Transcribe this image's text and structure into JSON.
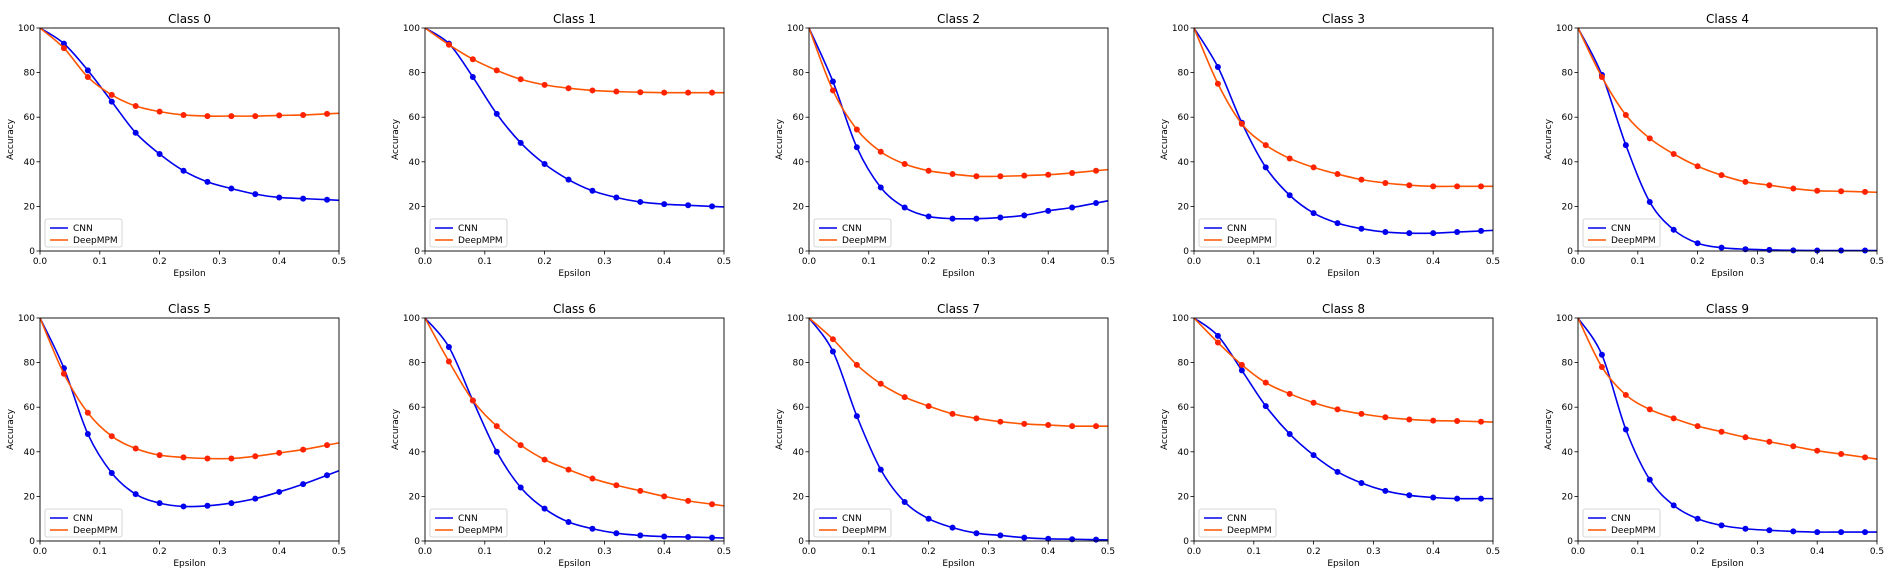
{
  "figure": {
    "colors": {
      "CNN": "#0000ee",
      "DeepMPM": "#ff2200",
      "DeepMPM_line": "#ff5500"
    }
  },
  "chart_data": [
    {
      "type": "line",
      "title": "Class 0",
      "xlabel": "Epsilon",
      "ylabel": "Accuracy",
      "xlim": [
        0,
        0.5
      ],
      "ylim": [
        0,
        100
      ],
      "xticks": [
        "0.0",
        "0.1",
        "0.2",
        "0.3",
        "0.4",
        "0.5"
      ],
      "yticks": [
        "0",
        "20",
        "40",
        "60",
        "80",
        "100"
      ],
      "x": [
        0,
        0.04,
        0.08,
        0.12,
        0.16,
        0.2,
        0.24,
        0.28,
        0.32,
        0.36,
        0.4,
        0.44,
        0.48
      ],
      "legend": "lower-left",
      "series": [
        {
          "name": "CNN",
          "values": [
            100,
            93,
            81,
            67,
            53,
            43.5,
            36,
            31,
            28,
            25.5,
            24,
            23.5,
            23
          ]
        },
        {
          "name": "DeepMPM",
          "values": [
            100,
            91,
            78,
            70,
            65,
            62.5,
            61,
            60.5,
            60.5,
            60.5,
            60.8,
            61,
            61.5
          ]
        }
      ]
    },
    {
      "type": "line",
      "title": "Class 1",
      "xlabel": "Epsilon",
      "ylabel": "Accuracy",
      "xlim": [
        0,
        0.5
      ],
      "ylim": [
        0,
        100
      ],
      "xticks": [
        "0.0",
        "0.1",
        "0.2",
        "0.3",
        "0.4",
        "0.5"
      ],
      "yticks": [
        "0",
        "20",
        "40",
        "60",
        "80",
        "100"
      ],
      "x": [
        0,
        0.04,
        0.08,
        0.12,
        0.16,
        0.2,
        0.24,
        0.28,
        0.32,
        0.36,
        0.4,
        0.44,
        0.48
      ],
      "legend": "lower-left",
      "series": [
        {
          "name": "CNN",
          "values": [
            100,
            93,
            78,
            61.5,
            48.5,
            39,
            32,
            27,
            24,
            22,
            21,
            20.5,
            20
          ]
        },
        {
          "name": "DeepMPM",
          "values": [
            100,
            92.5,
            86,
            81,
            77,
            74.5,
            73,
            72,
            71.5,
            71.2,
            71,
            71,
            71
          ]
        }
      ]
    },
    {
      "type": "line",
      "title": "Class 2",
      "xlabel": "Epsilon",
      "ylabel": "Accuracy",
      "xlim": [
        0,
        0.5
      ],
      "ylim": [
        0,
        100
      ],
      "xticks": [
        "0.0",
        "0.1",
        "0.2",
        "0.3",
        "0.4",
        "0.5"
      ],
      "yticks": [
        "0",
        "20",
        "40",
        "60",
        "80",
        "100"
      ],
      "x": [
        0,
        0.04,
        0.08,
        0.12,
        0.16,
        0.2,
        0.24,
        0.28,
        0.32,
        0.36,
        0.4,
        0.44,
        0.48
      ],
      "legend": "lower-left",
      "series": [
        {
          "name": "CNN",
          "values": [
            100,
            76,
            46.5,
            28.5,
            19.5,
            15.5,
            14.5,
            14.5,
            15,
            16,
            18,
            19.5,
            21.5
          ]
        },
        {
          "name": "DeepMPM",
          "values": [
            100,
            72,
            54.5,
            44.5,
            39,
            36,
            34.5,
            33.5,
            33.5,
            33.8,
            34.2,
            35,
            36
          ]
        }
      ]
    },
    {
      "type": "line",
      "title": "Class 3",
      "xlabel": "Epsilon",
      "ylabel": "Accuracy",
      "xlim": [
        0,
        0.5
      ],
      "ylim": [
        0,
        100
      ],
      "xticks": [
        "0.0",
        "0.1",
        "0.2",
        "0.3",
        "0.4",
        "0.5"
      ],
      "yticks": [
        "0",
        "20",
        "40",
        "60",
        "80",
        "100"
      ],
      "x": [
        0,
        0.04,
        0.08,
        0.12,
        0.16,
        0.2,
        0.24,
        0.28,
        0.32,
        0.36,
        0.4,
        0.44,
        0.48
      ],
      "legend": "lower-left",
      "series": [
        {
          "name": "CNN",
          "values": [
            100,
            82.5,
            57.5,
            37.5,
            25,
            17,
            12.5,
            10,
            8.5,
            8,
            8,
            8.5,
            9
          ]
        },
        {
          "name": "DeepMPM",
          "values": [
            100,
            75,
            57,
            47.5,
            41.5,
            37.5,
            34.5,
            32,
            30.5,
            29.5,
            29,
            29,
            29
          ]
        }
      ]
    },
    {
      "type": "line",
      "title": "Class 4",
      "xlabel": "Epsilon",
      "ylabel": "Accuracy",
      "xlim": [
        0,
        0.5
      ],
      "ylim": [
        0,
        100
      ],
      "xticks": [
        "0.0",
        "0.1",
        "0.2",
        "0.3",
        "0.4",
        "0.5"
      ],
      "yticks": [
        "0",
        "20",
        "40",
        "60",
        "80",
        "100"
      ],
      "x": [
        0,
        0.04,
        0.08,
        0.12,
        0.16,
        0.2,
        0.24,
        0.28,
        0.32,
        0.36,
        0.4,
        0.44,
        0.48
      ],
      "legend": "lower-left",
      "series": [
        {
          "name": "CNN",
          "values": [
            100,
            79,
            47.5,
            22,
            9.5,
            3.5,
            1.5,
            0.8,
            0.5,
            0.3,
            0.2,
            0.2,
            0.2
          ]
        },
        {
          "name": "DeepMPM",
          "values": [
            100,
            78,
            61,
            50.5,
            43.5,
            38,
            34,
            31,
            29.5,
            28,
            27,
            26.8,
            26.5
          ]
        }
      ]
    },
    {
      "type": "line",
      "title": "Class 5",
      "xlabel": "Epsilon",
      "ylabel": "Accuracy",
      "xlim": [
        0,
        0.5
      ],
      "ylim": [
        0,
        100
      ],
      "xticks": [
        "0.0",
        "0.1",
        "0.2",
        "0.3",
        "0.4",
        "0.5"
      ],
      "yticks": [
        "0",
        "20",
        "40",
        "60",
        "80",
        "100"
      ],
      "x": [
        0,
        0.04,
        0.08,
        0.12,
        0.16,
        0.2,
        0.24,
        0.28,
        0.32,
        0.36,
        0.4,
        0.44,
        0.48
      ],
      "legend": "lower-left",
      "series": [
        {
          "name": "CNN",
          "values": [
            100,
            77.5,
            48,
            30.5,
            21,
            17,
            15.5,
            15.8,
            17,
            19,
            22,
            25.5,
            29.5
          ]
        },
        {
          "name": "DeepMPM",
          "values": [
            100,
            75,
            57.5,
            47,
            41.5,
            38.5,
            37.5,
            37,
            37,
            38,
            39.5,
            41,
            43
          ]
        }
      ]
    },
    {
      "type": "line",
      "title": "Class 6",
      "xlabel": "Epsilon",
      "ylabel": "Accuracy",
      "xlim": [
        0,
        0.5
      ],
      "ylim": [
        0,
        100
      ],
      "xticks": [
        "0.0",
        "0.1",
        "0.2",
        "0.3",
        "0.4",
        "0.5"
      ],
      "yticks": [
        "0",
        "20",
        "40",
        "60",
        "80",
        "100"
      ],
      "x": [
        0,
        0.04,
        0.08,
        0.12,
        0.16,
        0.2,
        0.24,
        0.28,
        0.32,
        0.36,
        0.4,
        0.44,
        0.48
      ],
      "legend": "lower-left",
      "series": [
        {
          "name": "CNN",
          "values": [
            100,
            87,
            63,
            40,
            24,
            14.5,
            8.5,
            5.5,
            3.5,
            2.5,
            2,
            1.8,
            1.5
          ]
        },
        {
          "name": "DeepMPM",
          "values": [
            100,
            80.5,
            63,
            51.5,
            43,
            36.5,
            32,
            28,
            25,
            22.5,
            20,
            18,
            16.5
          ]
        }
      ]
    },
    {
      "type": "line",
      "title": "Class 7",
      "xlabel": "Epsilon",
      "ylabel": "Accuracy",
      "xlim": [
        0,
        0.5
      ],
      "ylim": [
        0,
        100
      ],
      "xticks": [
        "0.0",
        "0.1",
        "0.2",
        "0.3",
        "0.4",
        "0.5"
      ],
      "yticks": [
        "0",
        "20",
        "40",
        "60",
        "80",
        "100"
      ],
      "x": [
        0,
        0.04,
        0.08,
        0.12,
        0.16,
        0.2,
        0.24,
        0.28,
        0.32,
        0.36,
        0.4,
        0.44,
        0.48
      ],
      "legend": "lower-left",
      "series": [
        {
          "name": "CNN",
          "values": [
            100,
            85,
            56,
            32,
            17.5,
            10,
            6,
            3.5,
            2.5,
            1.5,
            1,
            0.8,
            0.6
          ]
        },
        {
          "name": "DeepMPM",
          "values": [
            100,
            90.5,
            79,
            70.5,
            64.5,
            60.5,
            57,
            55,
            53.5,
            52.5,
            52,
            51.5,
            51.5
          ]
        }
      ]
    },
    {
      "type": "line",
      "title": "Class 8",
      "xlabel": "Epsilon",
      "ylabel": "Accuracy",
      "xlim": [
        0,
        0.5
      ],
      "ylim": [
        0,
        100
      ],
      "xticks": [
        "0.0",
        "0.1",
        "0.2",
        "0.3",
        "0.4",
        "0.5"
      ],
      "yticks": [
        "0",
        "20",
        "40",
        "60",
        "80",
        "100"
      ],
      "x": [
        0,
        0.04,
        0.08,
        0.12,
        0.16,
        0.2,
        0.24,
        0.28,
        0.32,
        0.36,
        0.4,
        0.44,
        0.48
      ],
      "legend": "lower-left",
      "series": [
        {
          "name": "CNN",
          "values": [
            100,
            92,
            76.5,
            60.5,
            48,
            38.5,
            31,
            26,
            22.5,
            20.5,
            19.5,
            19,
            19
          ]
        },
        {
          "name": "DeepMPM",
          "values": [
            100,
            89,
            79,
            71,
            66,
            62,
            59,
            57,
            55.5,
            54.5,
            54,
            53.8,
            53.5
          ]
        }
      ]
    },
    {
      "type": "line",
      "title": "Class 9",
      "xlabel": "Epsilon",
      "ylabel": "Accuracy",
      "xlim": [
        0,
        0.5
      ],
      "ylim": [
        0,
        100
      ],
      "xticks": [
        "0.0",
        "0.1",
        "0.2",
        "0.3",
        "0.4",
        "0.5"
      ],
      "yticks": [
        "0",
        "20",
        "40",
        "60",
        "80",
        "100"
      ],
      "x": [
        0,
        0.04,
        0.08,
        0.12,
        0.16,
        0.2,
        0.24,
        0.28,
        0.32,
        0.36,
        0.4,
        0.44,
        0.48
      ],
      "legend": "lower-left",
      "series": [
        {
          "name": "CNN",
          "values": [
            100,
            83.5,
            50,
            27.5,
            16,
            10,
            7,
            5.5,
            4.8,
            4.3,
            4,
            4,
            4
          ]
        },
        {
          "name": "DeepMPM",
          "values": [
            100,
            78,
            65.5,
            59,
            55,
            51.5,
            49,
            46.5,
            44.5,
            42.5,
            40.5,
            39,
            37.5
          ]
        }
      ]
    }
  ]
}
